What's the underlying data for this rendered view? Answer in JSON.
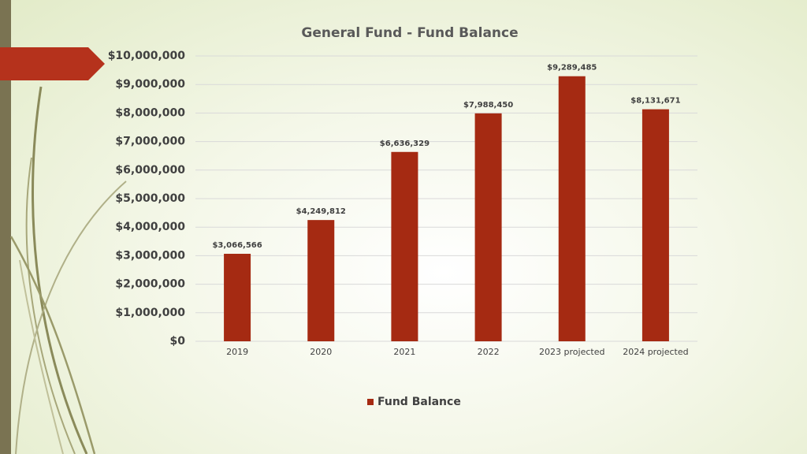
{
  "chart_data": {
    "type": "bar",
    "title": "General Fund - Fund Balance",
    "categories": [
      "2019",
      "2020",
      "2021",
      "2022",
      "2023 projected",
      "2024 projected"
    ],
    "series": [
      {
        "name": "Fund Balance",
        "color": "#a52a12",
        "values": [
          3066566,
          4249812,
          6636329,
          7988450,
          9289485,
          8131671
        ],
        "value_labels": [
          "$3,066,566",
          "$4,249,812",
          "$6,636,329",
          "$7,988,450",
          "$9,289,485",
          "$8,131,671"
        ]
      }
    ],
    "ylim": [
      0,
      10000000
    ],
    "yticks": [
      {
        "value": 0,
        "label": "$0"
      },
      {
        "value": 1000000,
        "label": "$1,000,000"
      },
      {
        "value": 2000000,
        "label": "$2,000,000"
      },
      {
        "value": 3000000,
        "label": "$3,000,000"
      },
      {
        "value": 4000000,
        "label": "$4,000,000"
      },
      {
        "value": 5000000,
        "label": "$5,000,000"
      },
      {
        "value": 6000000,
        "label": "$6,000,000"
      },
      {
        "value": 7000000,
        "label": "$7,000,000"
      },
      {
        "value": 8000000,
        "label": "$8,000,000"
      },
      {
        "value": 9000000,
        "label": "$9,000,000"
      },
      {
        "value": 10000000,
        "label": "$10,000,000"
      }
    ],
    "grid": true,
    "legend": "bottom"
  }
}
